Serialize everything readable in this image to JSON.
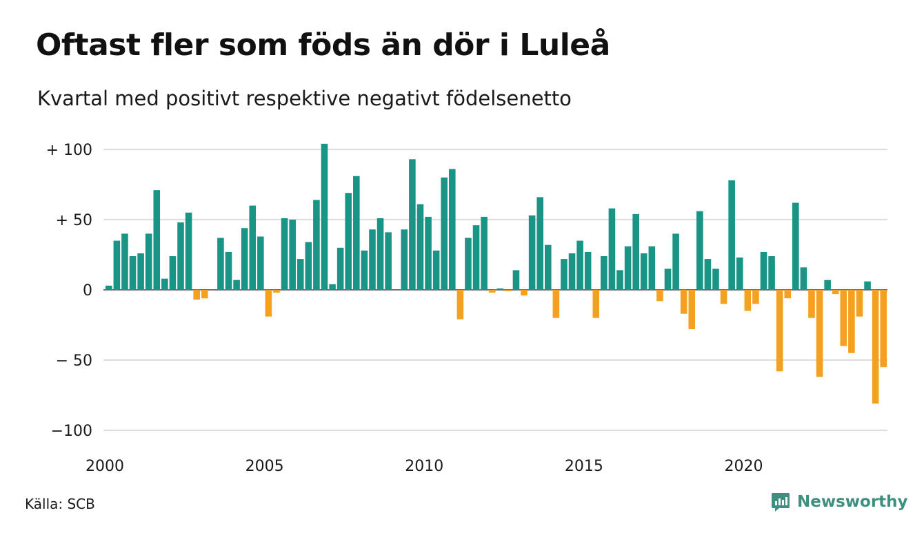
{
  "title": "Oftast fler som föds än dör i Luleå",
  "subtitle": "Kvartal med positivt respektive negativt födelsenetto",
  "source": "Källa: SCB",
  "brand": {
    "name": "Newsworthy",
    "icon": "newsworthy-logo-icon"
  },
  "colors": {
    "positive": "#1a9484",
    "negative": "#f4a020",
    "grid": "#dddddd"
  },
  "chart_data": {
    "type": "bar",
    "x_start": 2000,
    "periods_per_year": 4,
    "values": [
      3,
      35,
      40,
      24,
      26,
      40,
      71,
      8,
      24,
      48,
      55,
      -7,
      -6,
      0,
      37,
      27,
      7,
      44,
      60,
      38,
      -19,
      -2,
      51,
      50,
      22,
      34,
      64,
      104,
      4,
      30,
      69,
      81,
      28,
      43,
      51,
      41,
      0,
      43,
      93,
      61,
      52,
      28,
      80,
      86,
      -21,
      37,
      46,
      52,
      -2,
      1,
      -1,
      14,
      -4,
      53,
      66,
      32,
      -20,
      22,
      26,
      35,
      27,
      -20,
      24,
      58,
      14,
      31,
      54,
      26,
      31,
      -8,
      15,
      40,
      -17,
      -28,
      56,
      22,
      15,
      -10,
      78,
      23,
      -15,
      -10,
      27,
      24,
      -58,
      -6,
      62,
      16,
      -20,
      -62,
      7,
      -3,
      -40,
      -45,
      -19,
      6,
      -81,
      -55
    ],
    "ylim": [
      -100,
      100
    ],
    "yticks": [
      {
        "value": 100,
        "label": "+ 100"
      },
      {
        "value": 50,
        "label": "+  50"
      },
      {
        "value": 0,
        "label": "0"
      },
      {
        "value": -50,
        "label": "− 50"
      },
      {
        "value": -100,
        "label": "−100"
      }
    ],
    "xticks": [
      {
        "value": 2000,
        "label": "2000"
      },
      {
        "value": 2005,
        "label": "2005"
      },
      {
        "value": 2010,
        "label": "2010"
      },
      {
        "value": 2015,
        "label": "2015"
      },
      {
        "value": 2020,
        "label": "2020"
      }
    ],
    "grid": true,
    "legend": "none"
  }
}
